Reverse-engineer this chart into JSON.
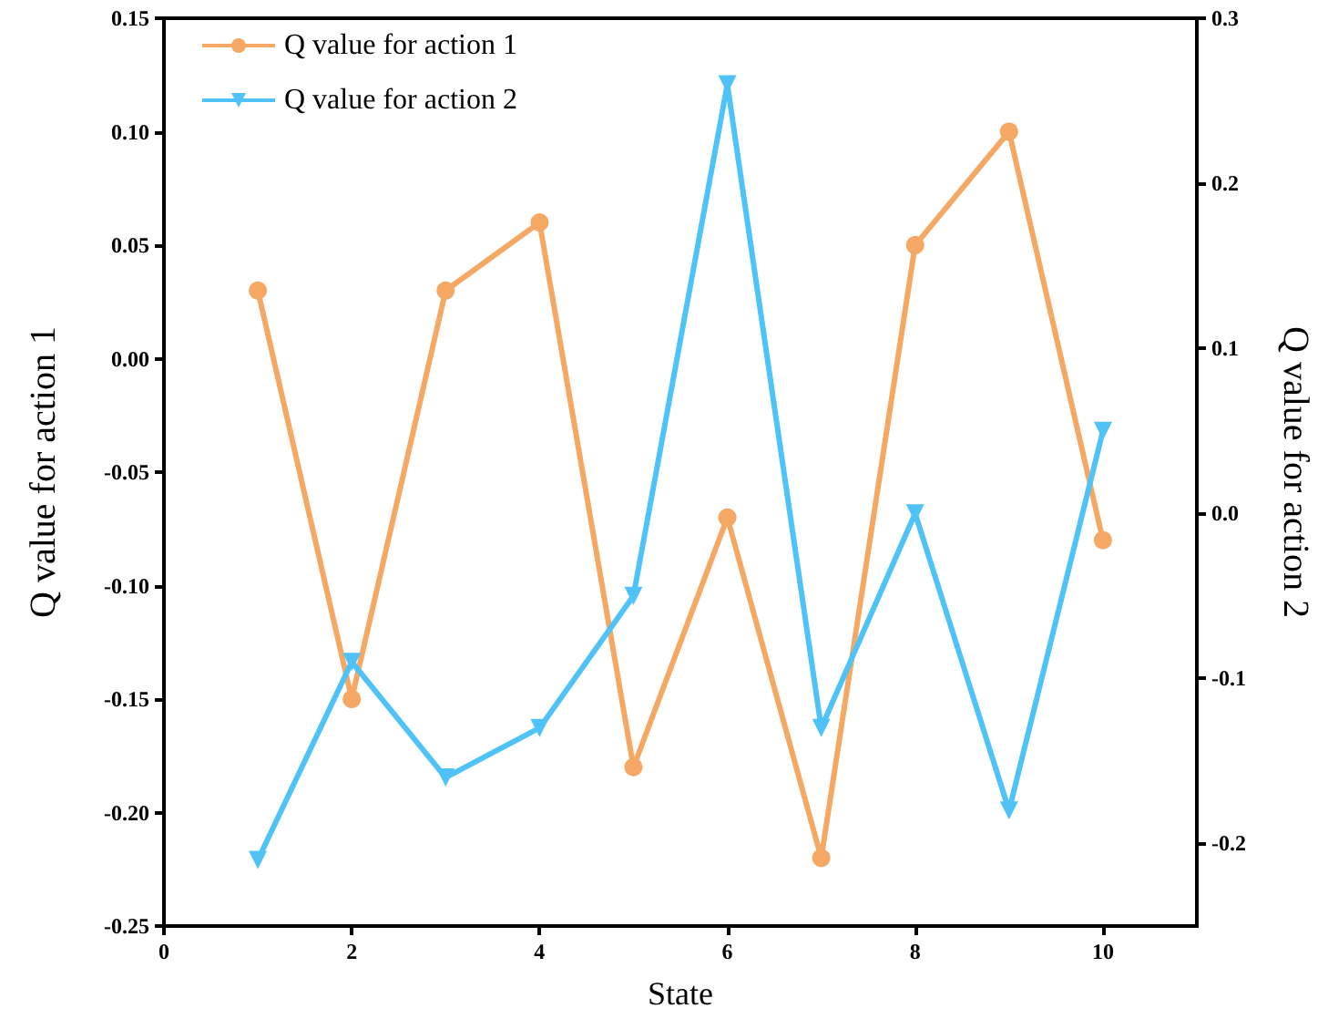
{
  "chart_data": {
    "type": "line",
    "xlabel": "State",
    "ylabel": "Q value for action 1",
    "y2label": "Q value for action 2",
    "x": [
      1,
      2,
      3,
      4,
      5,
      6,
      7,
      8,
      9,
      10
    ],
    "xlim": [
      0,
      11
    ],
    "xticks": [
      0,
      2,
      4,
      6,
      8,
      10
    ],
    "ylim": [
      -0.25,
      0.15
    ],
    "yticks": [
      -0.25,
      {
        "value": -0.2,
        "label": "-0.20"
      },
      -0.15,
      {
        "value": -0.1,
        "label": "-0.10"
      },
      -0.05,
      {
        "value": 0,
        "label": "0.00"
      },
      0.05,
      {
        "value": 0.1,
        "label": "0.10"
      },
      0.15
    ],
    "y2lim": [
      -0.25,
      0.3
    ],
    "y2ticks": [
      -0.2,
      -0.1,
      {
        "value": 0,
        "label": "0.0"
      },
      0.1,
      0.2,
      0.3
    ],
    "series": [
      {
        "name": "Q value for action 1",
        "color": "#f5a864",
        "marker": "circle",
        "values": [
          0.03,
          -0.15,
          0.03,
          0.06,
          -0.18,
          -0.07,
          -0.22,
          0.05,
          0.1,
          -0.08
        ]
      },
      {
        "name": "Q value for action 2",
        "color": "#4fc3f7",
        "marker": "triangle",
        "axis": "y2",
        "values": [
          -0.21,
          -0.09,
          -0.16,
          -0.13,
          -0.05,
          0.26,
          -0.13,
          0.0,
          -0.18,
          0.05
        ]
      }
    ],
    "grid": false,
    "legend": "top left",
    "line_style": "solid"
  }
}
